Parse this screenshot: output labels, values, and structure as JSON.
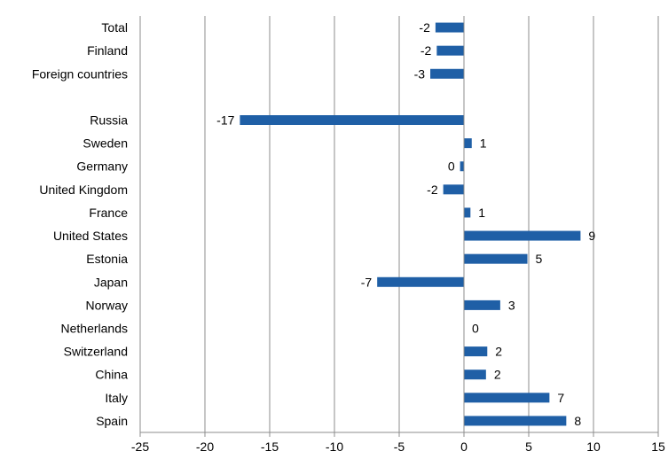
{
  "chart_data": {
    "type": "bar",
    "orientation": "horizontal",
    "title": "",
    "xlabel": "",
    "ylabel": "",
    "xlim": [
      -25,
      15
    ],
    "xticks": [
      -25,
      -20,
      -15,
      -10,
      -5,
      0,
      5,
      10,
      15
    ],
    "grid": "vertical",
    "legend": "none",
    "bar_color": "#1f5fa6",
    "categories": [
      "Total",
      "Finland",
      "Foreign countries",
      "",
      "Russia",
      "Sweden",
      "Germany",
      "United Kingdom",
      "France",
      "United States",
      "Estonia",
      "Japan",
      "Norway",
      "Netherlands",
      "Switzerland",
      "China",
      "Italy",
      "Spain"
    ],
    "values": [
      -2.2,
      -2.1,
      -2.6,
      null,
      -17.3,
      0.6,
      -0.3,
      -1.6,
      0.5,
      9.0,
      4.9,
      -6.7,
      2.8,
      0.0,
      1.8,
      1.7,
      6.6,
      7.9
    ],
    "data_labels": [
      "-2",
      "-2",
      "-3",
      "",
      "-17",
      "1",
      "0",
      "-2",
      "1",
      "9",
      "5",
      "-7",
      "3",
      "0",
      "2",
      "2",
      "7",
      "8"
    ]
  }
}
